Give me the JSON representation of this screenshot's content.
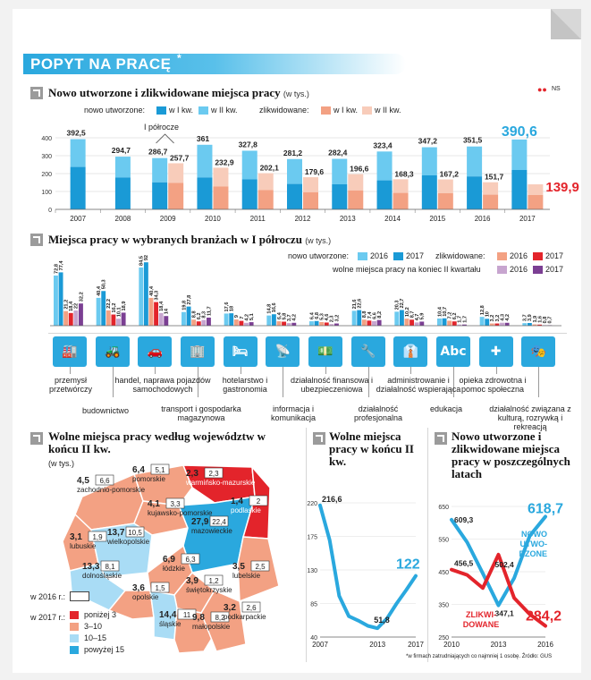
{
  "title": "POPYT NA PRACĘ",
  "title_star": "*",
  "logo_glyph": "●●",
  "logo_text": "NS",
  "footnote": "*w firmach zatrudniających co najmniej 1 osobę. Źródło: GUS",
  "colors": {
    "new_q1": "#1a9ad6",
    "new_q2": "#6bcaf0",
    "closed_q1": "#f3a183",
    "closed_q2": "#f8ccba",
    "c2016_new": "#6bcaf0",
    "c2017_new": "#1a9ad6",
    "c2016_closed": "#f3a183",
    "c2017_closed": "#e3242b",
    "c2016_vac": "#c7a5cf",
    "c2017_vac": "#7b3f93",
    "accent_blue": "#2aa8de",
    "accent_red": "#e3242b"
  },
  "c1": {
    "title": "Nowo utworzone i zlikwidowane miejsca pracy",
    "unit": "(w tys.)",
    "legend_new": "nowo utworzone:",
    "legend_closed": "zlikwidowane:",
    "q1": "w I kw.",
    "q2": "w II kw.",
    "half_note": "I półrocze"
  },
  "c2": {
    "title": "Miejsca pracy w wybranych branżach w I półroczu",
    "unit": "(w tys.)",
    "legend_new": "nowo utworzone:",
    "legend_closed": "zlikwidowane:",
    "legend_vac": "wolne miejsca pracy na koniec II kwartału",
    "y2016": "2016",
    "y2017": "2017"
  },
  "c3": {
    "title": "Wolne miejsca pracy według województw w końcu II kw.",
    "unit": "(w tys.)",
    "leg2016": "w 2016 r.:",
    "leg2017": "w 2017 r.:"
  },
  "c4": {
    "title": "Wolne miejsca pracy w końcu II kw."
  },
  "c5": {
    "title": "Nowo utworzone i zlikwidowane miejsca pracy w poszczególnych latach",
    "new_label_1": "NOWO",
    "new_label_2": "UTWO-",
    "new_label_3": "RZONE",
    "closed_label_1": "ZLIKWI-",
    "closed_label_2": "DOWANE"
  },
  "chart_data": [
    {
      "type": "bar",
      "title": "Nowo utworzone i zlikwidowane miejsca pracy (w tys.)",
      "categories": [
        "2007",
        "2008",
        "2009",
        "2010",
        "2011",
        "2012",
        "2013",
        "2014",
        "2015",
        "2016",
        "2017"
      ],
      "yticks": [
        "0",
        "100",
        "200",
        "300",
        "400"
      ],
      "ylim": [
        0,
        400
      ],
      "series": [
        {
          "name": "nowo utworzone",
          "values": [
            392.5,
            294.7,
            286.7,
            361,
            327.8,
            281.2,
            282.4,
            323.4,
            347.2,
            351.5,
            390.6
          ],
          "labels": [
            "392,5",
            "294,7",
            "286,7",
            "361",
            "327,8",
            "281,2",
            "282,4",
            "323,4",
            "347,2",
            "351,5",
            "390,6"
          ],
          "q1": [
            237,
            178,
            151,
            178,
            168,
            142,
            140,
            162,
            190,
            184,
            220
          ]
        },
        {
          "name": "zlikwidowane",
          "values": [
            null,
            null,
            257.7,
            232.9,
            202.1,
            179.6,
            196.6,
            168.3,
            167.2,
            151.7,
            139.9
          ],
          "labels": [
            "",
            "",
            "257,7",
            "232,9",
            "202,1",
            "179,6",
            "196,6",
            "168,3",
            "167,2",
            "151,7",
            "139,9"
          ],
          "q1": [
            null,
            null,
            148,
            128,
            108,
            96,
            106,
            92,
            90,
            82,
            80
          ]
        }
      ]
    },
    {
      "type": "bar",
      "title": "Miejsca pracy w wybranych branżach w I półroczu (w tys.)",
      "ylim": [
        0,
        100
      ],
      "series_names": [
        "nowo utworzone 2016",
        "nowo utworzone 2017",
        "zlikwidowane 2016",
        "zlikwidowane 2017",
        "wolne miejsca pracy 2016",
        "wolne miejsca pracy 2017"
      ],
      "groups": [
        {
          "name": "przemysł przetwórczy",
          "values": [
            72.8,
            77.4,
            21.2,
            18.4,
            22,
            32.2
          ],
          "labels": [
            "72,8",
            "77,4",
            "21,2",
            "18,4",
            "22",
            "32,2"
          ]
        },
        {
          "name": "budownictwo",
          "values": [
            40.4,
            50.3,
            22.2,
            16.2,
            10.1,
            18.9
          ],
          "labels": [
            "40,4",
            "50,3",
            "22,2",
            "16,2",
            "10,1",
            "18,9"
          ]
        },
        {
          "name": "handel, naprawa pojazdów samochodowych",
          "values": [
            84.5,
            92,
            40.4,
            34.3,
            18.4,
            14
          ],
          "labels": [
            "84,5",
            "92",
            "40,4",
            "34,3",
            "18,4",
            "14"
          ]
        },
        {
          "name": "transport i gospodarka magazynowa",
          "values": [
            19.8,
            27.8,
            8.8,
            6.2,
            8.3,
            11.7
          ],
          "labels": [
            "19,8",
            "27,8",
            "8,8",
            "6,2",
            "8,3",
            "11,7"
          ]
        },
        {
          "name": "hotelarstwo i gastronomia",
          "values": [
            17.6,
            18,
            9,
            7,
            4.2,
            5.1
          ],
          "labels": [
            "17,6",
            "18",
            "9",
            "7",
            "4,2",
            "5,1"
          ]
        },
        {
          "name": "informacja i komunikacja",
          "values": [
            14.8,
            16.6,
            6.4,
            5.8,
            3.7,
            4.2
          ],
          "labels": [
            "14,8",
            "16,6",
            "6,4",
            "5,8",
            "3,7",
            "4,2"
          ]
        },
        {
          "name": "działalność finansowa i ubezpieczeniowa",
          "values": [
            6.4,
            6.8,
            5.3,
            4.6,
            2.3,
            3.2
          ],
          "labels": [
            "6,4",
            "6,8",
            "5,3",
            "4,6",
            "2,3",
            "3,2"
          ]
        },
        {
          "name": "działalność profesjonalna",
          "values": [
            21.6,
            22.6,
            8.8,
            7.4,
            6.6,
            8.2
          ],
          "labels": [
            "21,6",
            "22,6",
            "8,8",
            "7,4",
            "6,6",
            "8,2"
          ]
        },
        {
          "name": "administrowanie i działalność wspierająca",
          "values": [
            20.3,
            22.7,
            10.2,
            8.7,
            4.7,
            5.9
          ],
          "labels": [
            "20,3",
            "22,7",
            "10,2",
            "8,7",
            "4,7",
            "5,9"
          ]
        },
        {
          "name": "edukacja",
          "values": [
            10.4,
            10.7,
            7.2,
            6.2,
            1.7,
            1.7
          ],
          "labels": [
            "10,4",
            "10,7",
            "7,2",
            "6,2",
            "1,7",
            "1,7"
          ]
        },
        {
          "name": "opieka zdrowotna i pomoc społeczna",
          "values": [
            12.8,
            10,
            3.2,
            3.2,
            4.3,
            4.2
          ],
          "labels": [
            "12,8",
            "10",
            "3,2",
            "3,2",
            "4,3",
            "4,2"
          ]
        },
        {
          "name": "działalność związana z kulturą, rozrywką i rekreacją",
          "values": [
            3.7,
            3.9,
            1.9,
            1.6,
            0.8,
            0.7
          ],
          "labels": [
            "3,7",
            "3,9",
            "1,9",
            "1,6",
            "0,8",
            "0,7"
          ]
        }
      ]
    },
    {
      "type": "table",
      "title": "Wolne miejsca pracy według województw w końcu II kw. (w tys.)",
      "legend": [
        "poniżej 3",
        "3–10",
        "10–15",
        "powyżej 15"
      ],
      "rows": [
        {
          "name": "zachodnio-pomorskie",
          "v2017": "4,5",
          "v2016": "6,6"
        },
        {
          "name": "pomorskie",
          "v2017": "6,4",
          "v2016": "5,1"
        },
        {
          "name": "warmińsko-mazurskie",
          "v2017": "2,3",
          "v2016": "2,3"
        },
        {
          "name": "podlaskie",
          "v2017": "1,4",
          "v2016": "2"
        },
        {
          "name": "kujawsko-pomorskie",
          "v2017": "4,1",
          "v2016": "3,3"
        },
        {
          "name": "lubuskie",
          "v2017": "3,1",
          "v2016": "1,9"
        },
        {
          "name": "wielkopolskie",
          "v2017": "13,7",
          "v2016": "10,5"
        },
        {
          "name": "mazowieckie",
          "v2017": "27,9",
          "v2016": "22,4"
        },
        {
          "name": "dolnośląskie",
          "v2017": "13,3",
          "v2016": "8,1"
        },
        {
          "name": "łódzkie",
          "v2017": "6,9",
          "v2016": "6,3"
        },
        {
          "name": "lubelskie",
          "v2017": "3,5",
          "v2016": "2,5"
        },
        {
          "name": "opolskie",
          "v2017": "3,6",
          "v2016": "1,5"
        },
        {
          "name": "świętokrzyskie",
          "v2017": "3,9",
          "v2016": "1,2"
        },
        {
          "name": "śląskie",
          "v2017": "14,4",
          "v2016": "11"
        },
        {
          "name": "małopolskie",
          "v2017": "9,8",
          "v2016": "8,2"
        },
        {
          "name": "podkarpackie",
          "v2017": "3,2",
          "v2016": "2,6"
        }
      ]
    },
    {
      "type": "line",
      "title": "Wolne miejsca pracy w końcu II kw.",
      "xticks": [
        "2007",
        "2013",
        "2017"
      ],
      "yticks": [
        "40",
        "85",
        "130",
        "175",
        "220"
      ],
      "ylim": [
        40,
        220
      ],
      "x": [
        2007,
        2008,
        2009,
        2010,
        2011,
        2012,
        2013,
        2014,
        2015,
        2016,
        2017
      ],
      "values": [
        216.6,
        170,
        95,
        68,
        62,
        55,
        51.8,
        65,
        85,
        103,
        122
      ],
      "labels": {
        "first": "216,6",
        "min": "51,8",
        "last": "122"
      }
    },
    {
      "type": "line",
      "title": "Nowo utworzone i zlikwidowane miejsca pracy w poszczególnych latach",
      "xticks": [
        "2010",
        "2013",
        "2016"
      ],
      "yticks": [
        "250",
        "350",
        "450",
        "550",
        "650"
      ],
      "ylim": [
        250,
        650
      ],
      "x": [
        2010,
        2011,
        2012,
        2013,
        2014,
        2015,
        2016
      ],
      "series": [
        {
          "name": "NOWO UTWORZONE",
          "values": [
            609.3,
            540,
            445,
            347.1,
            430,
            560,
            618.7
          ],
          "labels": {
            "first": "609,3",
            "min": "347,1",
            "last": "618,7"
          }
        },
        {
          "name": "ZLIKWIDOWANE",
          "values": [
            456.5,
            440,
            400,
            502.4,
            370,
            320,
            284.2
          ],
          "labels": {
            "first": "456,5",
            "mid": "502,4",
            "last": "284,2"
          }
        }
      ]
    }
  ]
}
